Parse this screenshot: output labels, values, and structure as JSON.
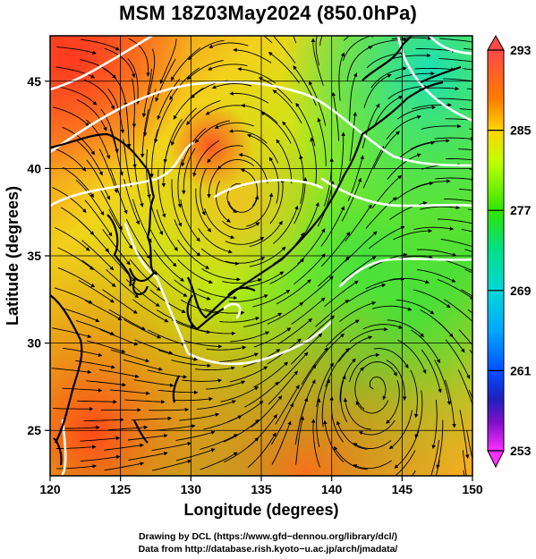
{
  "title": "MSM 18Z03May2024 (850.0hPa)",
  "map": {
    "xlabel": "Longitude (degrees)",
    "ylabel": "Latitude  (degrees)",
    "lon_range": [
      120,
      150
    ],
    "lat_range": [
      22.4,
      47.6
    ],
    "lon_ticks": [
      120,
      125,
      130,
      135,
      140,
      145,
      150
    ],
    "lat_ticks": [
      25,
      30,
      35,
      40,
      45
    ],
    "grid": true,
    "gridline_color": "#000000"
  },
  "colorbar": {
    "min": 253,
    "max": 293,
    "labels": [
      293,
      285,
      277,
      269,
      261,
      253
    ],
    "colors": [
      "#ff4a4a",
      "#ff7a00",
      "#ffd400",
      "#c0ff00",
      "#32e400",
      "#00e08a",
      "#00d8d8",
      "#00a8ff",
      "#0050ff",
      "#2020c0",
      "#7010c0",
      "#c010d8",
      "#ff30ff"
    ]
  },
  "footer": {
    "line1": "Drawing by DCL (https://www.gfd−dennou.org/library/dcl/)",
    "line2": "Data from http://database.rish.kyoto−u.ac.jp/arch/jmadata/"
  }
}
